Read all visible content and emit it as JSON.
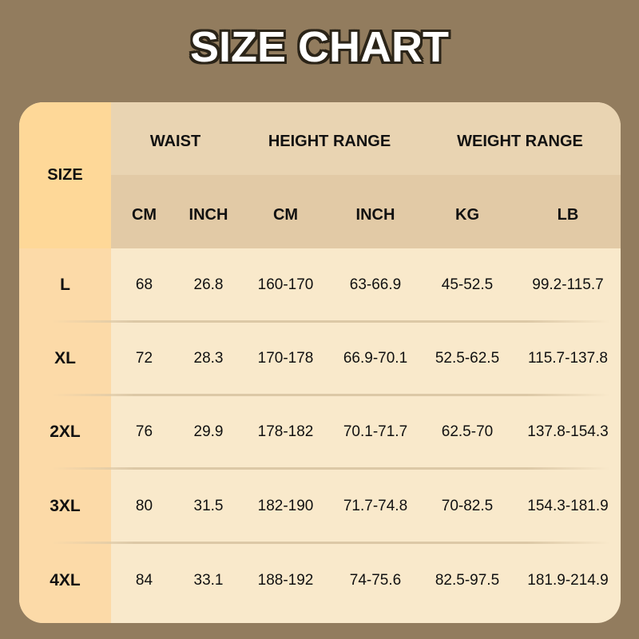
{
  "title": "SIZE CHART",
  "header": {
    "size": "SIZE",
    "groups": [
      "WAIST",
      "HEIGHT RANGE",
      "WEIGHT RANGE"
    ],
    "units": [
      "CM",
      "INCH",
      "CM",
      "INCH",
      "KG",
      "LB"
    ]
  },
  "rows": [
    {
      "size": "L",
      "values": [
        "68",
        "26.8",
        "160-170",
        "63-66.9",
        "45-52.5",
        "99.2-115.7"
      ]
    },
    {
      "size": "XL",
      "values": [
        "72",
        "28.3",
        "170-178",
        "66.9-70.1",
        "52.5-62.5",
        "115.7-137.8"
      ]
    },
    {
      "size": "2XL",
      "values": [
        "76",
        "29.9",
        "178-182",
        "70.1-71.7",
        "62.5-70",
        "137.8-154.3"
      ]
    },
    {
      "size": "3XL",
      "values": [
        "80",
        "31.5",
        "182-190",
        "71.7-74.8",
        "70-82.5",
        "154.3-181.9"
      ]
    },
    {
      "size": "4XL",
      "values": [
        "84",
        "33.1",
        "188-192",
        "74-75.6",
        "82.5-97.5",
        "181.9-214.9"
      ]
    }
  ],
  "colors": {
    "background": "#927c5e",
    "size_header": "#fed898",
    "header": "#e9d4b2",
    "subheader": "#e2caa6",
    "body": "#f9e9cb"
  }
}
